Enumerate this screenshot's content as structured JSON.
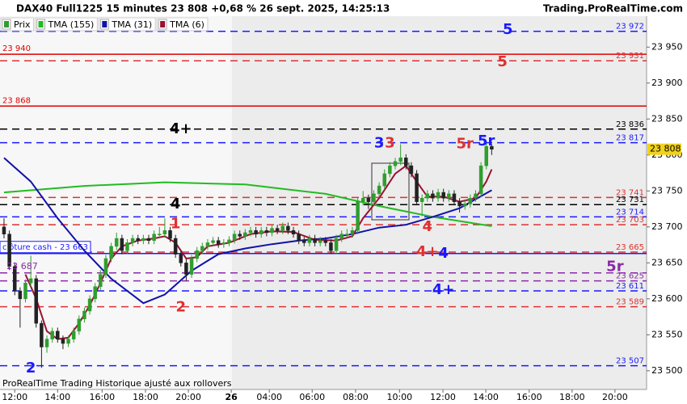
{
  "chart_data": {
    "type": "candlestick",
    "title": "DAX40 Full1225 15 minutes 23 808 +0,68 % 26 sept. 2025, 14:25:13",
    "source": "Trading.ProRealTime.com",
    "footer": "ProRealTime Trading  Historique ajusté aux rollovers",
    "price_name": "Prix",
    "up_color": "#2f9e2f",
    "down_color": "#222222",
    "x": [
      0,
      1,
      2,
      3,
      4,
      5,
      6,
      7,
      8,
      9,
      10,
      11,
      12,
      13,
      14,
      15,
      16,
      17,
      18,
      19,
      20,
      21,
      22,
      23,
      24,
      25,
      26,
      27,
      28,
      29,
      30,
      31,
      32,
      33,
      34,
      35,
      36,
      37,
      38,
      39,
      40,
      41,
      42,
      43,
      44,
      45,
      46,
      47,
      48,
      49,
      50,
      51,
      52,
      53,
      54,
      55,
      56,
      57,
      58,
      59,
      60,
      61,
      62,
      63,
      64,
      65,
      66,
      67,
      68,
      69,
      70,
      71,
      72,
      73,
      74,
      75,
      76,
      77,
      78,
      79,
      80,
      81,
      82,
      83,
      84,
      85,
      86,
      87,
      88,
      89,
      90,
      91
    ],
    "ohlc": [
      [
        23700,
        23712,
        23684,
        23690
      ],
      [
        23690,
        23695,
        23640,
        23645
      ],
      [
        23645,
        23650,
        23605,
        23611
      ],
      [
        23611,
        23616,
        23560,
        23600
      ],
      [
        23600,
        23627,
        23595,
        23622
      ],
      [
        23622,
        23660,
        23617,
        23628
      ],
      [
        23628,
        23633,
        23560,
        23566
      ],
      [
        23566,
        23570,
        23504,
        23533
      ],
      [
        23533,
        23549,
        23525,
        23544
      ],
      [
        23544,
        23560,
        23539,
        23555
      ],
      [
        23555,
        23560,
        23539,
        23544
      ],
      [
        23544,
        23549,
        23530,
        23538
      ],
      [
        23538,
        23549,
        23533,
        23544
      ],
      [
        23544,
        23560,
        23539,
        23555
      ],
      [
        23555,
        23577,
        23550,
        23572
      ],
      [
        23572,
        23588,
        23567,
        23583
      ],
      [
        23583,
        23605,
        23578,
        23600
      ],
      [
        23600,
        23622,
        23595,
        23617
      ],
      [
        23617,
        23640,
        23612,
        23634
      ],
      [
        23634,
        23661,
        23629,
        23656
      ],
      [
        23656,
        23678,
        23651,
        23673
      ],
      [
        23673,
        23692,
        23668,
        23684
      ],
      [
        23684,
        23689,
        23662,
        23667
      ],
      [
        23667,
        23683,
        23662,
        23678
      ],
      [
        23678,
        23689,
        23673,
        23684
      ],
      [
        23684,
        23689,
        23676,
        23681
      ],
      [
        23681,
        23689,
        23676,
        23684
      ],
      [
        23684,
        23689,
        23676,
        23681
      ],
      [
        23681,
        23695,
        23676,
        23690
      ],
      [
        23690,
        23700,
        23685,
        23690
      ],
      [
        23690,
        23712,
        23685,
        23695
      ],
      [
        23695,
        23700,
        23679,
        23684
      ],
      [
        23684,
        23689,
        23657,
        23662
      ],
      [
        23662,
        23667,
        23645,
        23650
      ],
      [
        23650,
        23655,
        23625,
        23634
      ],
      [
        23634,
        23661,
        23629,
        23656
      ],
      [
        23656,
        23672,
        23651,
        23667
      ],
      [
        23667,
        23678,
        23662,
        23673
      ],
      [
        23673,
        23683,
        23668,
        23678
      ],
      [
        23678,
        23686,
        23673,
        23681
      ],
      [
        23681,
        23686,
        23671,
        23676
      ],
      [
        23676,
        23683,
        23671,
        23678
      ],
      [
        23678,
        23687,
        23673,
        23682
      ],
      [
        23682,
        23695,
        23677,
        23690
      ],
      [
        23690,
        23695,
        23682,
        23687
      ],
      [
        23687,
        23697,
        23682,
        23692
      ],
      [
        23692,
        23700,
        23687,
        23695
      ],
      [
        23695,
        23700,
        23685,
        23690
      ],
      [
        23690,
        23700,
        23685,
        23695
      ],
      [
        23695,
        23700,
        23687,
        23692
      ],
      [
        23692,
        23703,
        23687,
        23698
      ],
      [
        23698,
        23703,
        23690,
        23695
      ],
      [
        23695,
        23706,
        23690,
        23701
      ],
      [
        23701,
        23706,
        23690,
        23695
      ],
      [
        23695,
        23700,
        23685,
        23690
      ],
      [
        23690,
        23695,
        23676,
        23681
      ],
      [
        23681,
        23686,
        23673,
        23678
      ],
      [
        23678,
        23689,
        23673,
        23684
      ],
      [
        23684,
        23689,
        23673,
        23678
      ],
      [
        23678,
        23686,
        23673,
        23681
      ],
      [
        23681,
        23686,
        23673,
        23678
      ],
      [
        23678,
        23683,
        23662,
        23667
      ],
      [
        23667,
        23689,
        23662,
        23684
      ],
      [
        23684,
        23695,
        23679,
        23690
      ],
      [
        23690,
        23697,
        23685,
        23690
      ],
      [
        23690,
        23700,
        23685,
        23695
      ],
      [
        23695,
        23740,
        23690,
        23735
      ],
      [
        23735,
        23750,
        23730,
        23740
      ],
      [
        23740,
        23745,
        23725,
        23735
      ],
      [
        23735,
        23751,
        23730,
        23746
      ],
      [
        23746,
        23762,
        23741,
        23757
      ],
      [
        23757,
        23780,
        23752,
        23774
      ],
      [
        23774,
        23790,
        23769,
        23785
      ],
      [
        23785,
        23796,
        23780,
        23791
      ],
      [
        23791,
        23815,
        23786,
        23796
      ],
      [
        23796,
        23801,
        23780,
        23785
      ],
      [
        23785,
        23790,
        23769,
        23774
      ],
      [
        23774,
        23779,
        23730,
        23735
      ],
      [
        23735,
        23745,
        23715,
        23740
      ],
      [
        23740,
        23751,
        23735,
        23746
      ],
      [
        23746,
        23751,
        23735,
        23740
      ],
      [
        23740,
        23753,
        23735,
        23748
      ],
      [
        23748,
        23753,
        23735,
        23740
      ],
      [
        23740,
        23751,
        23735,
        23746
      ],
      [
        23746,
        23751,
        23730,
        23735
      ],
      [
        23735,
        23740,
        23720,
        23729
      ],
      [
        23729,
        23737,
        23724,
        23732
      ],
      [
        23732,
        23745,
        23727,
        23740
      ],
      [
        23740,
        23751,
        23735,
        23746
      ],
      [
        23746,
        23790,
        23741,
        23785
      ],
      [
        23785,
        23818,
        23780,
        23812
      ],
      [
        23812,
        23815,
        23800,
        23808
      ]
    ],
    "series": [
      {
        "name": "TMA (155)",
        "color": "#22bb22",
        "x": [
          0,
          15,
          30,
          45,
          60,
          70,
          80,
          91
        ],
        "values": [
          23748,
          23757,
          23762,
          23759,
          23746,
          23729,
          23714,
          23701
        ]
      },
      {
        "name": "TMA (31)",
        "color": "#1111aa",
        "x": [
          0,
          5,
          10,
          15,
          20,
          26,
          30,
          35,
          40,
          45,
          50,
          55,
          60,
          65,
          70,
          75,
          80,
          85,
          91
        ],
        "values": [
          23796,
          23763,
          23712,
          23667,
          23628,
          23594,
          23606,
          23639,
          23662,
          23670,
          23676,
          23681,
          23684,
          23690,
          23699,
          23703,
          23714,
          23726,
          23751
        ]
      },
      {
        "name": "TMA (6)",
        "color": "#9b1030",
        "x": [
          4,
          6,
          8,
          10,
          12,
          14,
          16,
          18,
          20,
          22,
          25,
          28,
          30,
          32,
          34,
          36,
          38,
          42,
          46,
          50,
          54,
          58,
          62,
          65,
          67,
          70,
          73,
          75,
          77,
          79,
          82,
          85,
          88,
          90,
          91
        ],
        "values": [
          23634,
          23600,
          23555,
          23544,
          23546,
          23566,
          23591,
          23622,
          23656,
          23673,
          23681,
          23684,
          23687,
          23678,
          23656,
          23658,
          23673,
          23678,
          23690,
          23694,
          23693,
          23682,
          23681,
          23687,
          23712,
          23740,
          23774,
          23785,
          23763,
          23742,
          23742,
          23735,
          23740,
          23763,
          23780
        ]
      }
    ],
    "levels": [
      {
        "value": 23972,
        "label": "23 972",
        "color": "#1a1aff",
        "style": "dashed",
        "side": "right"
      },
      {
        "value": 23940,
        "label": "23 940",
        "color": "#e00000",
        "style": "solid",
        "side": "left"
      },
      {
        "value": 23931,
        "label": "23 931",
        "color": "#e03030",
        "style": "dashed",
        "side": "right"
      },
      {
        "value": 23868,
        "label": "23 868",
        "color": "#e00000",
        "style": "solid",
        "side": "left"
      },
      {
        "value": 23836,
        "label": "23 836",
        "color": "#000000",
        "style": "dashed",
        "side": "right"
      },
      {
        "value": 23817,
        "label": "23 817",
        "color": "#1a1aff",
        "style": "dashed",
        "side": "right"
      },
      {
        "value": 23741,
        "label": "23 741",
        "color": "#e03030",
        "style": "dashed",
        "side": "right"
      },
      {
        "value": 23731,
        "label": "23 731",
        "color": "#000000",
        "style": "dashed",
        "side": "right"
      },
      {
        "value": 23714,
        "label": "23 714",
        "color": "#1a1aff",
        "style": "dashed",
        "side": "right"
      },
      {
        "value": 23703,
        "label": "23 703",
        "color": "#e03030",
        "style": "dashed",
        "side": "right"
      },
      {
        "value": 23665,
        "label": "23 665",
        "color": "#e03030",
        "style": "dashed",
        "side": "right"
      },
      {
        "value": 23663,
        "label": "clôture cash  -  23 663",
        "color": "#1a1aff",
        "style": "solid",
        "side": "left"
      },
      {
        "value": 23636,
        "color": "#8a2aa8",
        "style": "dashed"
      },
      {
        "value": 23625,
        "label": "23 625",
        "color": "#8a2aa8",
        "style": "dashed",
        "side": "right"
      },
      {
        "value": 23611,
        "label": "23 611",
        "color": "#1a1aff",
        "style": "dashed",
        "side": "right"
      },
      {
        "value": 23589,
        "label": "23 589",
        "color": "#e03030",
        "style": "dashed",
        "side": "right"
      },
      {
        "value": 23507,
        "label": "23 507",
        "color": "#1a1aff",
        "style": "dashed",
        "side": "right"
      }
    ],
    "annotations": [
      {
        "text": "5",
        "color": "#1a1aff",
        "x": 94,
        "y": 23974
      },
      {
        "text": "5",
        "color": "#e03030",
        "x": 93,
        "y": 23929
      },
      {
        "text": "4+",
        "color": "#000000",
        "x": 33,
        "y": 23836
      },
      {
        "text": "4",
        "color": "#000000",
        "x": 32,
        "y": 23731
      },
      {
        "text": "1",
        "color": "#e03030",
        "x": 32,
        "y": 23704
      },
      {
        "text": "2",
        "color": "#e03030",
        "x": 33,
        "y": 23588
      },
      {
        "text": "2",
        "color": "#1a1aff",
        "x": 5,
        "y": 23503
      },
      {
        "text": "3",
        "color": "#1a1aff",
        "x": 70,
        "y": 23816
      },
      {
        "text": "3",
        "color": "#e03030",
        "x": 72,
        "y": 23816
      },
      {
        "text": "5r",
        "color": "#e03030",
        "x": 86,
        "y": 23815
      },
      {
        "text": "5r",
        "color": "#1a1aff",
        "x": 90,
        "y": 23819
      },
      {
        "text": "4",
        "color": "#e03030",
        "x": 79,
        "y": 23700
      },
      {
        "text": "4+",
        "color": "#e03030",
        "x": 79,
        "y": 23665
      },
      {
        "text": "4",
        "color": "#1a1aff",
        "x": 82,
        "y": 23663
      },
      {
        "text": "4+",
        "color": "#1a1aff",
        "x": 82,
        "y": 23612
      },
      {
        "text": "5r",
        "color": "#8a2aa8",
        "x": 114,
        "y": 23644
      },
      {
        "text": "23 687",
        "color": "#8a2aa8",
        "x": 0.5,
        "y": 23645
      }
    ],
    "current": {
      "value": 23808,
      "label": "23 808",
      "color": "#f2d21b"
    },
    "xlim": [
      -0.75,
      119.9
    ],
    "ylim": [
      23474,
      23993
    ],
    "xticks": [
      {
        "value": 2,
        "label": "12:00"
      },
      {
        "value": 10,
        "label": "14:00"
      },
      {
        "value": 18.3,
        "label": "16:00"
      },
      {
        "value": 26.4,
        "label": "18:00"
      },
      {
        "value": 34.4,
        "label": "20:00"
      },
      {
        "value": 42.4,
        "label": "26"
      },
      {
        "value": 49.5,
        "label": "04:00"
      },
      {
        "value": 57.5,
        "label": "06:00"
      },
      {
        "value": 65.6,
        "label": "08:00"
      },
      {
        "value": 73.8,
        "label": "10:00"
      },
      {
        "value": 81.9,
        "label": "12:00"
      },
      {
        "value": 89.9,
        "label": "14:00"
      },
      {
        "value": 98,
        "label": "16:00"
      },
      {
        "value": 106,
        "label": "18:00"
      },
      {
        "value": 114,
        "label": "20:00"
      }
    ],
    "yticks": [
      {
        "value": 23950,
        "label": "23 950"
      },
      {
        "value": 23900,
        "label": "23 900"
      },
      {
        "value": 23850,
        "label": "23 850"
      },
      {
        "value": 23800,
        "label": "23 800"
      },
      {
        "value": 23750,
        "label": "23 750"
      },
      {
        "value": 23700,
        "label": "23 700"
      },
      {
        "value": 23650,
        "label": "23 650"
      },
      {
        "value": 23600,
        "label": "23 600"
      },
      {
        "value": 23550,
        "label": "23 550"
      },
      {
        "value": 23500,
        "label": "23 500"
      }
    ]
  }
}
